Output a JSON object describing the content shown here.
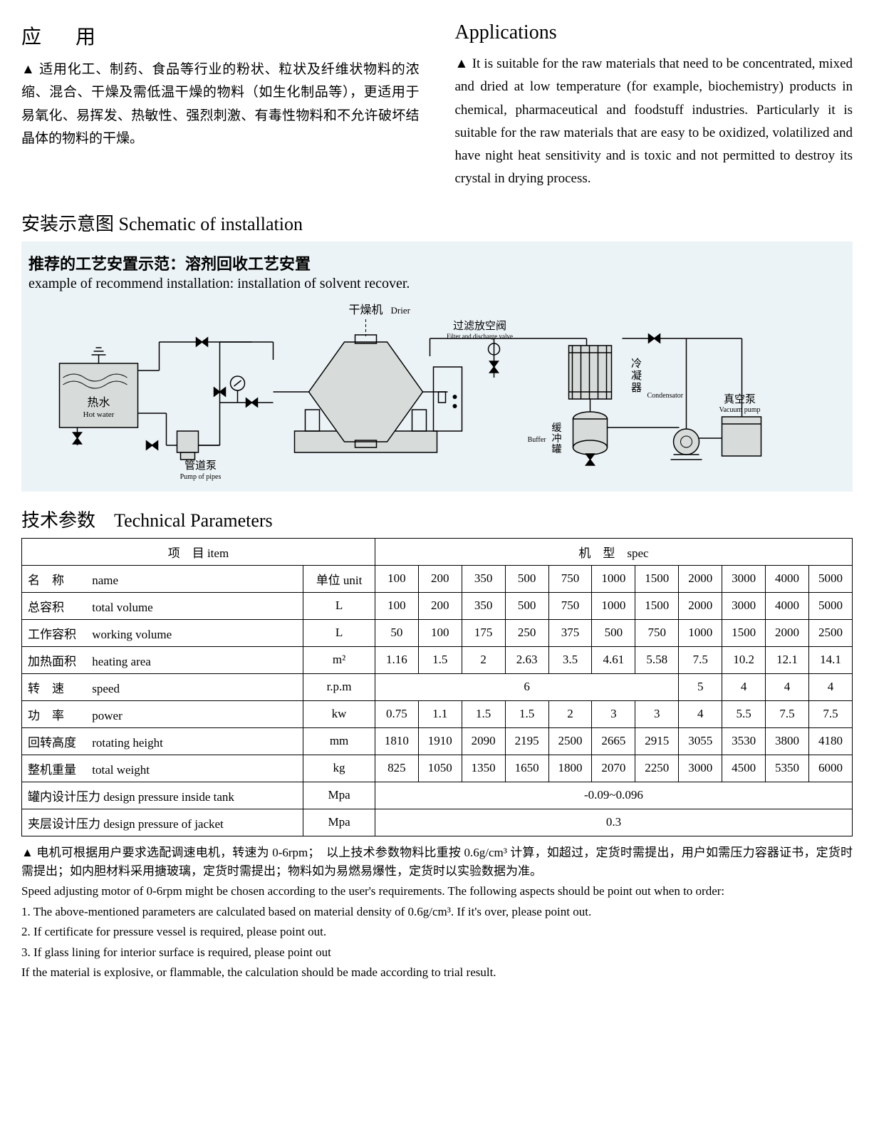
{
  "app": {
    "title_cn": "应　用",
    "title_en": "Applications",
    "body_cn": "适用化工、制药、食品等行业的粉状、粒状及纤维状物料的浓缩、混合、干燥及需低温干燥的物料（如生化制品等），更适用于易氧化、易挥发、热敏性、强烈刺激、有毒性物料和不允许破坏结晶体的物料的干燥。",
    "body_en": "It is suitable for the raw materials that need to be concentrated, mixed and dried at low temperature (for example, biochemistry) products in chemical, pharmaceutical and foodstuff industries. Particularly it is suitable for the raw materials that are easy to be oxidized, volatilized and have night heat sensitivity and is toxic and not permitted to destroy its crystal in drying process."
  },
  "schematic": {
    "heading": "安装示意图 Schematic of installation",
    "sub_cn": "推荐的工艺安置示范：溶剂回收工艺安置",
    "sub_en": "example of recommend installation: installation of solvent recover.",
    "labels": {
      "drier_cn": "干燥机",
      "drier_en": "Drier",
      "filter_cn": "过滤放空阀",
      "filter_en": "Filter and discharge valve",
      "condenser_cn": "冷凝器",
      "condenser_en": "Condensator",
      "vacuum_cn": "真空泵",
      "vacuum_en": "Vacuum pump",
      "buffer_cn": "缓冲罐",
      "buffer_en": "Buffer",
      "hotwater_cn": "热水",
      "hotwater_en": "Hot water",
      "pump_cn": "管道泵",
      "pump_en": "Pump of pipes"
    },
    "style": {
      "bg": "#ecf3f6",
      "stroke": "#000000",
      "fill": "#d7dcdb",
      "stroke_width": 1.5,
      "font_cn": 16,
      "font_en": 11
    }
  },
  "params": {
    "heading": "技术参数　Technical Parameters",
    "header_item": "项　目 item",
    "header_spec": "机　型　spec",
    "col_name_cn": "名　称",
    "col_name_en": "name",
    "col_unit": "单位 unit",
    "specs": [
      "100",
      "200",
      "350",
      "500",
      "750",
      "1000",
      "1500",
      "2000",
      "3000",
      "4000",
      "5000"
    ],
    "rows": [
      {
        "cn": "总容积",
        "cn_ls": "tight",
        "en": "total volume",
        "unit": "L",
        "vals": [
          "100",
          "200",
          "350",
          "500",
          "750",
          "1000",
          "1500",
          "2000",
          "3000",
          "4000",
          "5000"
        ]
      },
      {
        "cn": "工作容积",
        "cn_ls": "tight",
        "en": "working volume",
        "unit": "L",
        "vals": [
          "50",
          "100",
          "175",
          "250",
          "375",
          "500",
          "750",
          "1000",
          "1500",
          "2000",
          "2500"
        ]
      },
      {
        "cn": "加热面积",
        "cn_ls": "tight",
        "en": "heating area",
        "unit": "m²",
        "vals": [
          "1.16",
          "1.5",
          "2",
          "2.63",
          "3.5",
          "4.61",
          "5.58",
          "7.5",
          "10.2",
          "12.1",
          "14.1"
        ]
      },
      {
        "cn": "转　速",
        "cn_ls": "tight",
        "en": "speed",
        "unit": "r.p.m",
        "vals_merged": [
          {
            "span": 7,
            "v": "6"
          },
          {
            "span": 1,
            "v": "5"
          },
          {
            "span": 1,
            "v": "4"
          },
          {
            "span": 1,
            "v": "4"
          },
          {
            "span": 1,
            "v": "4"
          }
        ]
      },
      {
        "cn": "功　率",
        "cn_ls": "tight",
        "en": "power",
        "unit": "kw",
        "vals": [
          "0.75",
          "1.1",
          "1.5",
          "1.5",
          "2",
          "3",
          "3",
          "4",
          "5.5",
          "7.5",
          "7.5"
        ]
      },
      {
        "cn": "回转高度",
        "cn_ls": "tight",
        "en": "rotating height",
        "unit": "mm",
        "vals": [
          "1810",
          "1910",
          "2090",
          "2195",
          "2500",
          "2665",
          "2915",
          "3055",
          "3530",
          "3800",
          "4180"
        ]
      },
      {
        "cn": "整机重量",
        "cn_ls": "tight",
        "en": "total weight",
        "unit": "kg",
        "vals": [
          "825",
          "1050",
          "1350",
          "1650",
          "1800",
          "2070",
          "2250",
          "3000",
          "4500",
          "5350",
          "6000"
        ]
      },
      {
        "cn": "罐内设计压力",
        "cn_ls": "tight",
        "en": "design pressure inside tank",
        "unit": "Mpa",
        "vals_merged": [
          {
            "span": 11,
            "v": "-0.09~0.096"
          }
        ]
      },
      {
        "cn": "夹层设计压力",
        "cn_ls": "tight",
        "en": "design pressure of jacket",
        "unit": "Mpa",
        "vals_merged": [
          {
            "span": 11,
            "v": "0.3"
          }
        ]
      }
    ]
  },
  "notes": {
    "cn": "▲ 电机可根据用户要求选配调速电机，转速为 0-6rpm；　以上技术参数物料比重按 0.6g/cm³ 计算，如超过，定货时需提出，用户如需压力容器证书，定货时需提出；如内胆材料采用搪玻璃，定货时需提出；物料如为易燃易爆性，定货时以实验数据为准。",
    "en": [
      "Speed adjusting motor of 0-6rpm might be chosen according to the user's requirements. The following aspects should be point out when to order:",
      "1. The above-mentioned parameters are calculated based on material density of 0.6g/cm³. If it's over, please point out.",
      "2. If certificate for pressure vessel is required, please point out.",
      "3. If glass lining for interior surface is required, please point out",
      "If the material is explosive, or flammable, the calculation should be made according to trial result."
    ]
  }
}
